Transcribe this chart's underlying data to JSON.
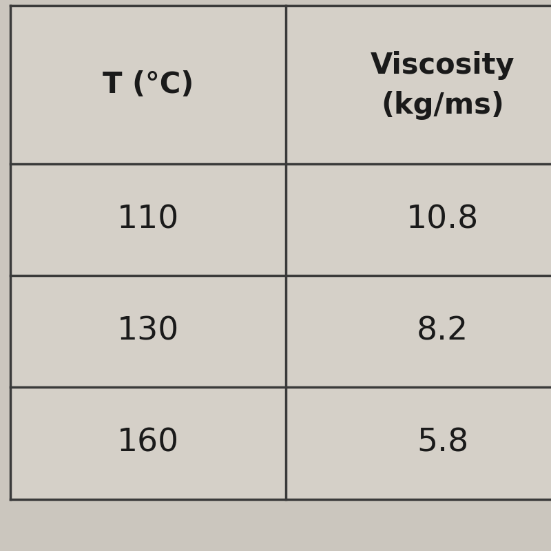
{
  "col1_header": "T (°C)",
  "col2_header_line1": "Viscosity",
  "col2_header_line2": "(kg/ms)",
  "rows": [
    [
      "110",
      "10.8"
    ],
    [
      "130",
      "8.2"
    ],
    [
      "160",
      "5.8"
    ]
  ],
  "bg_color": "#d5d0c8",
  "line_color": "#3a3a3a",
  "text_color": "#1a1a1a",
  "header_fontsize": 30,
  "cell_fontsize": 34,
  "fig_bg": "#cbc6be"
}
